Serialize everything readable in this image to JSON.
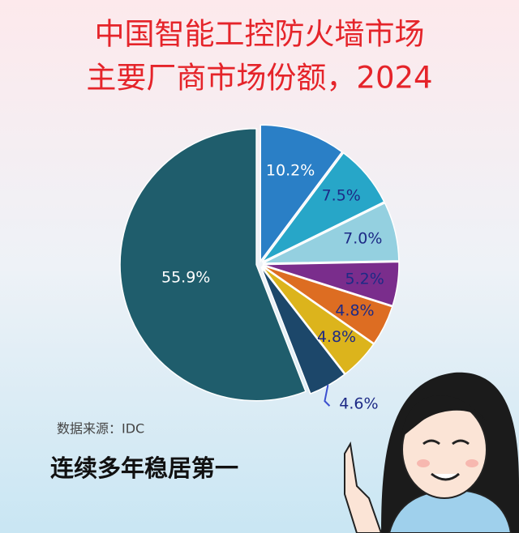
{
  "chart_data": {
    "type": "pie",
    "title": [
      "中国智能工控防火墙市场",
      "主要厂商市场份额，2024"
    ],
    "values": [
      10.2,
      7.5,
      7.0,
      5.2,
      4.8,
      4.8,
      4.6,
      55.9
    ],
    "value_labels": [
      "10.2%",
      "7.5%",
      "7.0%",
      "5.2%",
      "4.8%",
      "4.8%",
      "4.6%",
      "55.9%"
    ],
    "colors": [
      "#2a7fc6",
      "#27a6c8",
      "#94d0e0",
      "#7a2d8c",
      "#dd6d22",
      "#dcb41c",
      "#1c476a",
      "#1f5d6c"
    ],
    "source": "数据来源：IDC",
    "slogan": "连续多年稳居第一"
  }
}
